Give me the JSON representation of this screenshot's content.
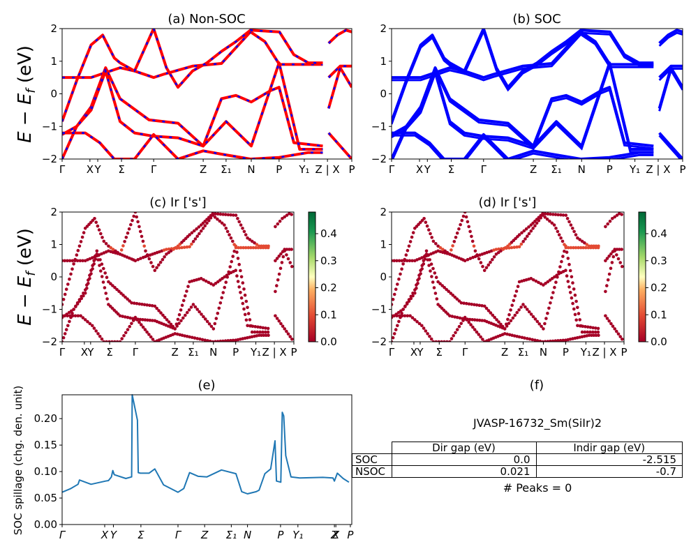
{
  "chart_data": [
    {
      "id": "a",
      "type": "line",
      "title": "(a) Non-SOC",
      "ylabel": "E − E_f (eV)",
      "ylim": [
        -2,
        2
      ],
      "yticks": [
        -2,
        -1,
        0,
        1,
        2
      ],
      "kpath_ticks": [
        {
          "label": "Γ",
          "pos": 0.0
        },
        {
          "label": "X",
          "pos": 0.096
        },
        {
          "label": "Y",
          "pos": 0.123
        },
        {
          "label": "Σ",
          "pos": 0.205
        },
        {
          "label": "Γ",
          "pos": 0.316
        },
        {
          "label": "Z",
          "pos": 0.487
        },
        {
          "label": "Σ₁",
          "pos": 0.566
        },
        {
          "label": "N",
          "pos": 0.653
        },
        {
          "label": "P",
          "pos": 0.749
        },
        {
          "label": "Y₁",
          "pos": 0.836
        },
        {
          "label": "Z | X",
          "pos": 0.916
        },
        {
          "label": "P",
          "pos": 1.0
        }
      ],
      "series_style": [
        {
          "name": "Non-SOC",
          "color": "#ff0000"
        },
        {
          "name": "SOC overlay",
          "color": "#0000ff",
          "dashed": true
        }
      ],
      "bands": [
        [
          [
            0,
            0.5
          ],
          [
            0.1,
            0.5
          ],
          [
            0.2,
            0.8
          ],
          [
            0.25,
            0.7
          ],
          [
            0.3,
            0.55
          ],
          [
            0.316,
            0.5
          ],
          [
            0.35,
            0.6
          ],
          [
            0.45,
            0.85
          ],
          [
            0.55,
            0.93
          ],
          [
            0.65,
            1.9
          ],
          [
            0.7,
            1.6
          ],
          [
            0.75,
            0.9
          ],
          [
            0.9,
            0.9
          ]
        ],
        [
          [
            0,
            -0.85
          ],
          [
            0.05,
            0.4
          ],
          [
            0.1,
            1.5
          ],
          [
            0.14,
            1.8
          ],
          [
            0.18,
            1.1
          ],
          [
            0.2,
            0.95
          ],
          [
            0.25,
            0.7
          ],
          [
            0.316,
            2.0
          ]
        ],
        [
          [
            0.316,
            2.0
          ],
          [
            0.36,
            0.8
          ],
          [
            0.4,
            0.2
          ],
          [
            0.45,
            0.7
          ],
          [
            0.5,
            0.95
          ],
          [
            0.55,
            1.3
          ],
          [
            0.6,
            1.6
          ],
          [
            0.65,
            1.95
          ],
          [
            0.75,
            1.9
          ],
          [
            0.8,
            1.2
          ],
          [
            0.85,
            0.95
          ],
          [
            0.9,
            0.95
          ]
        ],
        [
          [
            0,
            -1.25
          ],
          [
            0.05,
            -1.0
          ],
          [
            0.1,
            -0.4
          ],
          [
            0.15,
            0.8
          ],
          [
            0.2,
            -0.15
          ],
          [
            0.3,
            -0.8
          ],
          [
            0.4,
            -0.9
          ],
          [
            0.487,
            -1.6
          ],
          [
            0.55,
            -0.15
          ],
          [
            0.6,
            -0.05
          ],
          [
            0.653,
            -0.25
          ],
          [
            0.72,
            0.1
          ],
          [
            0.749,
            0.2
          ],
          [
            0.8,
            -1.5
          ],
          [
            0.9,
            -1.6
          ]
        ],
        [
          [
            0,
            -2.0
          ],
          [
            0.05,
            -1.0
          ],
          [
            0.1,
            -0.5
          ],
          [
            0.15,
            0.7
          ],
          [
            0.2,
            -0.85
          ],
          [
            0.25,
            -1.2
          ],
          [
            0.316,
            -1.3
          ],
          [
            0.4,
            -1.35
          ],
          [
            0.487,
            -1.6
          ],
          [
            0.566,
            -0.85
          ],
          [
            0.653,
            -1.6
          ],
          [
            0.749,
            0.95
          ],
          [
            0.82,
            -1.7
          ],
          [
            0.9,
            -1.7
          ]
        ],
        [
          [
            0,
            -1.2
          ],
          [
            0.08,
            -1.2
          ],
          [
            0.13,
            -1.5
          ],
          [
            0.18,
            -2.0
          ],
          [
            0.25,
            -2.0
          ],
          [
            0.316,
            -1.25
          ],
          [
            0.4,
            -2.0
          ],
          [
            0.487,
            -1.75
          ],
          [
            0.55,
            -1.85
          ],
          [
            0.65,
            -2.0
          ],
          [
            0.749,
            -1.95
          ],
          [
            0.85,
            -1.8
          ],
          [
            0.9,
            -1.8
          ]
        ],
        [
          [
            0.92,
            1.55
          ],
          [
            0.95,
            1.8
          ],
          [
            0.98,
            1.95
          ],
          [
            1.0,
            1.9
          ]
        ],
        [
          [
            0.92,
            0.5
          ],
          [
            0.96,
            0.85
          ],
          [
            1.0,
            0.85
          ]
        ],
        [
          [
            0.92,
            -0.45
          ],
          [
            0.96,
            0.8
          ],
          [
            1.0,
            0.2
          ]
        ],
        [
          [
            0.92,
            -1.2
          ],
          [
            0.96,
            -1.6
          ],
          [
            1.0,
            -2.0
          ]
        ]
      ]
    },
    {
      "id": "b",
      "type": "line",
      "title": "(b) SOC",
      "ylim": [
        -2,
        2
      ],
      "yticks": [
        -2,
        -1,
        0,
        1,
        2
      ],
      "series_style": [
        {
          "name": "SOC",
          "color": "#0000ff"
        }
      ],
      "note": "Same k-path and band structure as (a), with spin-orbit splitting"
    },
    {
      "id": "c",
      "type": "scatter",
      "title": "(c)  Ir ['s']",
      "ylabel": "E − E_f (eV)",
      "ylim": [
        -2,
        2
      ],
      "yticks": [
        -2,
        -1,
        0,
        1,
        2
      ],
      "colorbar": {
        "cmap": "RdYlGn",
        "range": [
          0.0,
          0.48
        ],
        "ticks": [
          "0.0",
          "0.1",
          "0.2",
          "0.3",
          "0.4"
        ]
      }
    },
    {
      "id": "d",
      "type": "scatter",
      "title": "(d) Ir ['s']",
      "ylim": [
        -2,
        2
      ],
      "yticks": [
        -2,
        -1,
        0,
        1,
        2
      ],
      "colorbar": {
        "cmap": "RdYlGn",
        "range": [
          0.0,
          0.48
        ],
        "ticks": [
          "0.0",
          "0.1",
          "0.2",
          "0.3",
          "0.4"
        ]
      }
    },
    {
      "id": "e",
      "type": "line",
      "title": "(e)",
      "ylabel": "SOC spillage (chg. den. unit)",
      "ylim": [
        0,
        0.245
      ],
      "yticks": [
        "0.00",
        "0.05",
        "0.10",
        "0.15",
        "0.20"
      ],
      "color": "#1f77b4",
      "kpath_ticks": [
        {
          "label": "Γ",
          "pos": 0.0
        },
        {
          "label": "X",
          "pos": 0.147
        },
        {
          "label": "Y",
          "pos": 0.177
        },
        {
          "label": "Σ",
          "pos": 0.272
        },
        {
          "label": "Γ",
          "pos": 0.4
        },
        {
          "label": "Z",
          "pos": 0.492
        },
        {
          "label": "Σ₁",
          "pos": 0.584
        },
        {
          "label": "N",
          "pos": 0.64
        },
        {
          "label": "P",
          "pos": 0.754
        },
        {
          "label": "Y₁",
          "pos": 0.814
        },
        {
          "label": "Z",
          "pos": 0.94
        },
        {
          "label": "X",
          "pos": 0.945
        },
        {
          "label": "P",
          "pos": 0.995
        }
      ],
      "x": [
        0.0,
        0.03,
        0.055,
        0.06,
        0.1,
        0.15,
        0.16,
        0.17,
        0.175,
        0.18,
        0.22,
        0.24,
        0.242,
        0.26,
        0.263,
        0.27,
        0.3,
        0.32,
        0.35,
        0.4,
        0.42,
        0.44,
        0.47,
        0.5,
        0.55,
        0.6,
        0.62,
        0.64,
        0.67,
        0.68,
        0.7,
        0.72,
        0.735,
        0.74,
        0.755,
        0.76,
        0.765,
        0.772,
        0.79,
        0.82,
        0.9,
        0.935,
        0.94,
        0.95,
        0.97,
        0.99
      ],
      "values": [
        0.061,
        0.068,
        0.076,
        0.084,
        0.076,
        0.082,
        0.083,
        0.09,
        0.102,
        0.094,
        0.087,
        0.09,
        0.245,
        0.197,
        0.098,
        0.097,
        0.097,
        0.105,
        0.075,
        0.061,
        0.068,
        0.098,
        0.091,
        0.09,
        0.103,
        0.096,
        0.062,
        0.058,
        0.062,
        0.065,
        0.096,
        0.105,
        0.158,
        0.082,
        0.08,
        0.212,
        0.205,
        0.13,
        0.09,
        0.088,
        0.089,
        0.088,
        0.082,
        0.097,
        0.087,
        0.08
      ]
    }
  ],
  "panel_f": {
    "title": "(f)",
    "material": "JVASP-16732_Sm(SiIr)2",
    "table": {
      "columns": [
        "",
        "Dir gap (eV)",
        "Indir gap (eV)"
      ],
      "rows": [
        {
          "label": "SOC",
          "dir": "0.0",
          "indir": "-2.515"
        },
        {
          "label": "NSOC",
          "dir": "0.021",
          "indir": "-0.7"
        }
      ]
    },
    "peaks": "# Peaks = 0"
  },
  "labels": {
    "a_title": "(a) Non-SOC",
    "b_title": "(b) SOC",
    "c_title": "(c)  Ir ['s']",
    "d_title": "(d) Ir ['s']",
    "e_title": "(e)",
    "ylabel_energy": "E − E",
    "ylabel_energy_sub": "f",
    "ylabel_energy_unit": " (eV)",
    "ylabel_spillage": "SOC spillage (chg. den. unit)"
  }
}
